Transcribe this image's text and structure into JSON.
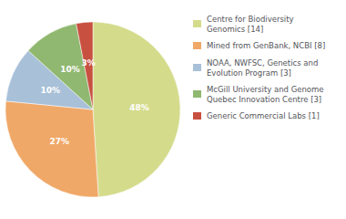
{
  "chart_data": {
    "type": "pie",
    "categories": [
      "Centre for Biodiversity\nGenomics [14]",
      "Mined from GenBank, NCBI [8]",
      "NOAA, NWFSC, Genetics and\nEvolution Program [3]",
      "McGill University and Genome\nQuebec Innovation Centre [3]",
      "Generic Commercial Labs [1]"
    ],
    "values": [
      48,
      27,
      10,
      10,
      3
    ],
    "value_labels": [
      "48%",
      "27%",
      "10%",
      "10%",
      "3%"
    ],
    "colors": [
      "#d4dc8c",
      "#f0a868",
      "#a8c0d8",
      "#90b870",
      "#c85040"
    ],
    "data_labels": true,
    "legend": "right"
  }
}
